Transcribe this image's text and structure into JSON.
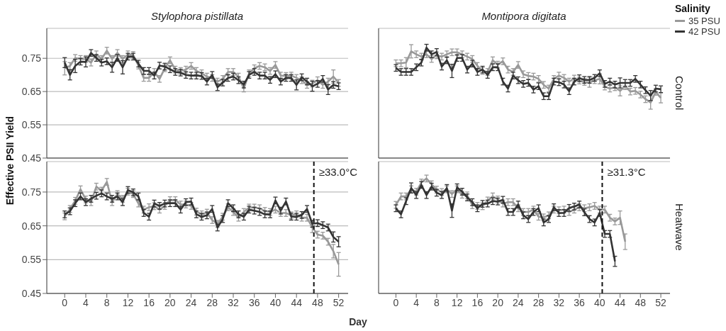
{
  "chart_data": [
    {
      "type": "line",
      "title": "Stylophora pistillata",
      "ylabel": "Effective PSII Yield",
      "tick_labels": "y",
      "grid": "y",
      "x": [
        0,
        1,
        2,
        3,
        4,
        5,
        6,
        7,
        8,
        9,
        10,
        11,
        12,
        13,
        14,
        15,
        16,
        17,
        18,
        19,
        20,
        21,
        22,
        23,
        24,
        25,
        26,
        27,
        28,
        29,
        30,
        31,
        32,
        33,
        34,
        35,
        36,
        37,
        38,
        39,
        40,
        41,
        42,
        43,
        44,
        45,
        46,
        47,
        48,
        49,
        50,
        51,
        52
      ],
      "xlim": [
        -3.4,
        53.8
      ],
      "xticks": [
        0,
        4,
        8,
        12,
        16,
        20,
        24,
        28,
        32,
        36,
        40,
        44,
        48,
        52
      ],
      "ylim": [
        0.45,
        0.84
      ],
      "yticks": [
        0.45,
        0.55,
        0.65,
        0.75
      ],
      "series": [
        {
          "color": "#999999",
          "values": [
            0.72,
            0.727,
            0.751,
            0.748,
            0.748,
            0.737,
            0.762,
            0.748,
            0.773,
            0.748,
            0.766,
            0.748,
            0.762,
            0.76,
            0.728,
            0.691,
            0.691,
            0.709,
            0.688,
            0.72,
            0.744,
            0.716,
            0.712,
            0.716,
            0.727,
            0.712,
            0.705,
            0.695,
            0.691,
            0.68,
            0.688,
            0.709,
            0.709,
            0.695,
            0.659,
            0.705,
            0.72,
            0.727,
            0.723,
            0.712,
            0.73,
            0.698,
            0.697,
            0.698,
            0.691,
            0.684,
            0.67,
            0.674,
            0.684,
            0.67,
            0.68,
            0.695,
            0.676
          ],
          "errors": [
            0.02,
            0.01,
            0.01,
            0.01,
            0.01,
            0.01,
            0.01,
            0.01,
            0.01,
            0.01,
            0.01,
            0.01,
            0.01,
            0.01,
            0.01,
            0.01,
            0.01,
            0.01,
            0.01,
            0.01,
            0.01,
            0.01,
            0.01,
            0.01,
            0.01,
            0.01,
            0.01,
            0.01,
            0.01,
            0.01,
            0.01,
            0.01,
            0.01,
            0.01,
            0.01,
            0.01,
            0.01,
            0.01,
            0.01,
            0.01,
            0.01,
            0.01,
            0.01,
            0.01,
            0.01,
            0.01,
            0.01,
            0.01,
            0.01,
            0.01,
            0.01,
            0.02,
            0.01
          ]
        },
        {
          "color": "#333333",
          "values": [
            0.737,
            0.7,
            0.727,
            0.74,
            0.739,
            0.766,
            0.751,
            0.737,
            0.741,
            0.723,
            0.751,
            0.723,
            0.755,
            0.755,
            0.734,
            0.712,
            0.712,
            0.698,
            0.728,
            0.725,
            0.717,
            0.709,
            0.707,
            0.7,
            0.698,
            0.698,
            0.697,
            0.68,
            0.7,
            0.663,
            0.677,
            0.691,
            0.695,
            0.684,
            0.671,
            0.7,
            0.709,
            0.698,
            0.698,
            0.685,
            0.702,
            0.68,
            0.691,
            0.691,
            0.67,
            0.693,
            0.68,
            0.666,
            0.673,
            0.688,
            0.656,
            0.67,
            0.666
          ],
          "errors": [
            0.015,
            0.015,
            0.02,
            0.01,
            0.015,
            0.01,
            0.01,
            0.01,
            0.01,
            0.015,
            0.01,
            0.02,
            0.01,
            0.01,
            0.01,
            0.01,
            0.01,
            0.01,
            0.01,
            0.01,
            0.01,
            0.01,
            0.01,
            0.01,
            0.01,
            0.01,
            0.01,
            0.01,
            0.01,
            0.01,
            0.01,
            0.01,
            0.01,
            0.01,
            0.01,
            0.01,
            0.01,
            0.01,
            0.01,
            0.01,
            0.01,
            0.01,
            0.01,
            0.01,
            0.015,
            0.01,
            0.01,
            0.015,
            0.01,
            0.01,
            0.015,
            0.01,
            0.01
          ]
        }
      ]
    },
    {
      "type": "line",
      "title": "Montipora digitata",
      "annotations": [
        "Control"
      ],
      "tick_labels": false,
      "grid": "y",
      "legend": "top right",
      "legend_title": "Salinity",
      "x": [
        0,
        1,
        2,
        3,
        4,
        5,
        6,
        7,
        8,
        9,
        10,
        11,
        12,
        13,
        14,
        15,
        16,
        17,
        18,
        19,
        20,
        21,
        22,
        23,
        24,
        25,
        26,
        27,
        28,
        29,
        30,
        31,
        32,
        33,
        34,
        35,
        36,
        37,
        38,
        39,
        40,
        41,
        42,
        43,
        44,
        45,
        46,
        47,
        48,
        49,
        50,
        51,
        52
      ],
      "xlim": [
        -3.4,
        53.8
      ],
      "xticks": [
        0,
        4,
        8,
        12,
        16,
        20,
        24,
        28,
        32,
        36,
        40,
        44,
        48,
        52
      ],
      "ylim": [
        0.45,
        0.84
      ],
      "yticks": [
        0.45,
        0.55,
        0.65,
        0.75
      ],
      "series": [
        {
          "name": "35 PSU",
          "color": "#999999",
          "values": [
            0.735,
            0.735,
            0.737,
            0.771,
            0.762,
            0.755,
            0.762,
            0.748,
            0.759,
            0.755,
            0.762,
            0.768,
            0.768,
            0.762,
            0.755,
            0.748,
            0.727,
            0.712,
            0.709,
            0.744,
            0.731,
            0.741,
            0.716,
            0.709,
            0.73,
            0.702,
            0.697,
            0.695,
            0.688,
            0.67,
            0.659,
            0.688,
            0.698,
            0.691,
            0.68,
            0.689,
            0.683,
            0.679,
            0.678,
            0.684,
            0.688,
            0.665,
            0.659,
            0.663,
            0.652,
            0.666,
            0.65,
            0.652,
            0.641,
            0.627,
            0.617,
            0.649,
            0.631
          ],
          "errors": [
            0.01,
            0.01,
            0.015,
            0.02,
            0.01,
            0.01,
            0.01,
            0.01,
            0.01,
            0.01,
            0.01,
            0.01,
            0.01,
            0.01,
            0.01,
            0.01,
            0.01,
            0.01,
            0.01,
            0.01,
            0.01,
            0.01,
            0.01,
            0.01,
            0.01,
            0.01,
            0.01,
            0.01,
            0.01,
            0.01,
            0.01,
            0.01,
            0.01,
            0.01,
            0.01,
            0.01,
            0.01,
            0.01,
            0.015,
            0.01,
            0.015,
            0.01,
            0.01,
            0.01,
            0.015,
            0.01,
            0.01,
            0.01,
            0.01,
            0.01,
            0.02,
            0.01,
            0.015
          ]
        },
        {
          "name": "42 PSU",
          "color": "#333333",
          "values": [
            0.721,
            0.709,
            0.709,
            0.709,
            0.723,
            0.737,
            0.782,
            0.762,
            0.769,
            0.725,
            0.744,
            0.712,
            0.751,
            0.751,
            0.716,
            0.734,
            0.709,
            0.716,
            0.7,
            0.723,
            0.723,
            0.68,
            0.659,
            0.698,
            0.684,
            0.673,
            0.676,
            0.656,
            0.666,
            0.636,
            0.636,
            0.68,
            0.678,
            0.671,
            0.651,
            0.68,
            0.69,
            0.685,
            0.685,
            0.691,
            0.705,
            0.673,
            0.68,
            0.671,
            0.676,
            0.676,
            0.676,
            0.688,
            0.671,
            0.654,
            0.638,
            0.659,
            0.657
          ],
          "errors": [
            0.01,
            0.01,
            0.01,
            0.01,
            0.01,
            0.01,
            0.01,
            0.01,
            0.01,
            0.01,
            0.01,
            0.02,
            0.01,
            0.01,
            0.01,
            0.01,
            0.01,
            0.01,
            0.01,
            0.01,
            0.01,
            0.01,
            0.01,
            0.01,
            0.01,
            0.01,
            0.01,
            0.01,
            0.01,
            0.01,
            0.01,
            0.01,
            0.01,
            0.01,
            0.01,
            0.01,
            0.01,
            0.01,
            0.01,
            0.01,
            0.01,
            0.01,
            0.01,
            0.01,
            0.015,
            0.01,
            0.01,
            0.01,
            0.01,
            0.01,
            0.015,
            0.01,
            0.01
          ]
        }
      ]
    },
    {
      "type": "line",
      "xlabel": "Day",
      "grid": "y",
      "ref_lines": [
        {
          "axis": "x",
          "value": 47.3,
          "label": "≥33.0°C",
          "line_style": "dashed"
        }
      ],
      "x": [
        0,
        1,
        2,
        3,
        4,
        5,
        6,
        7,
        8,
        9,
        10,
        11,
        12,
        13,
        14,
        15,
        16,
        17,
        18,
        19,
        20,
        21,
        22,
        23,
        24,
        25,
        26,
        27,
        28,
        29,
        30,
        31,
        32,
        33,
        34,
        35,
        36,
        37,
        38,
        39,
        40,
        41,
        42,
        43,
        44,
        45,
        46,
        47,
        48,
        49,
        50,
        51,
        52
      ],
      "xlim": [
        -3.4,
        53.8
      ],
      "xticks": [
        0,
        4,
        8,
        12,
        16,
        20,
        24,
        28,
        32,
        36,
        40,
        44,
        48,
        52
      ],
      "ylim": [
        0.45,
        0.84
      ],
      "yticks": [
        0.45,
        0.55,
        0.65,
        0.75
      ],
      "series": [
        {
          "color": "#999999",
          "values": [
            0.678,
            0.7,
            0.724,
            0.758,
            0.728,
            0.72,
            0.766,
            0.754,
            0.78,
            0.72,
            0.744,
            0.73,
            0.751,
            0.744,
            0.716,
            0.698,
            0.705,
            0.708,
            0.698,
            0.709,
            0.726,
            0.726,
            0.713,
            0.713,
            0.709,
            0.692,
            0.684,
            0.689,
            0.667,
            0.656,
            0.677,
            0.705,
            0.691,
            0.674,
            0.691,
            0.704,
            0.704,
            0.702,
            0.694,
            0.691,
            0.698,
            0.688,
            0.688,
            0.681,
            0.684,
            0.674,
            0.674,
            0.645,
            0.624,
            0.621,
            0.603,
            0.575,
            0.536
          ],
          "errors": [
            0.01,
            0.01,
            0.01,
            0.01,
            0.01,
            0.01,
            0.01,
            0.01,
            0.01,
            0.01,
            0.01,
            0.01,
            0.01,
            0.01,
            0.01,
            0.01,
            0.01,
            0.01,
            0.01,
            0.01,
            0.01,
            0.01,
            0.01,
            0.01,
            0.01,
            0.01,
            0.01,
            0.01,
            0.01,
            0.01,
            0.01,
            0.01,
            0.01,
            0.01,
            0.01,
            0.01,
            0.01,
            0.01,
            0.01,
            0.01,
            0.01,
            0.01,
            0.01,
            0.01,
            0.01,
            0.01,
            0.01,
            0.015,
            0.01,
            0.01,
            0.01,
            0.02,
            0.035
          ]
        },
        {
          "color": "#333333",
          "values": [
            0.684,
            0.693,
            0.717,
            0.737,
            0.72,
            0.73,
            0.739,
            0.746,
            0.737,
            0.73,
            0.737,
            0.72,
            0.756,
            0.749,
            0.737,
            0.688,
            0.677,
            0.716,
            0.709,
            0.716,
            0.717,
            0.717,
            0.698,
            0.72,
            0.722,
            0.684,
            0.677,
            0.681,
            0.7,
            0.645,
            0.67,
            0.717,
            0.702,
            0.684,
            0.677,
            0.698,
            0.695,
            0.691,
            0.684,
            0.684,
            0.725,
            0.695,
            0.722,
            0.677,
            0.677,
            0.682,
            0.7,
            0.656,
            0.658,
            0.652,
            0.645,
            0.617,
            0.603
          ],
          "errors": [
            0.01,
            0.01,
            0.01,
            0.01,
            0.01,
            0.01,
            0.01,
            0.01,
            0.01,
            0.01,
            0.01,
            0.01,
            0.01,
            0.01,
            0.01,
            0.01,
            0.01,
            0.01,
            0.01,
            0.01,
            0.01,
            0.01,
            0.01,
            0.01,
            0.01,
            0.01,
            0.01,
            0.01,
            0.01,
            0.01,
            0.01,
            0.01,
            0.01,
            0.01,
            0.01,
            0.01,
            0.01,
            0.01,
            0.01,
            0.01,
            0.01,
            0.01,
            0.01,
            0.01,
            0.01,
            0.01,
            0.01,
            0.01,
            0.01,
            0.01,
            0.01,
            0.015,
            0.015
          ]
        }
      ]
    },
    {
      "type": "line",
      "annotations": [
        "Heatwave"
      ],
      "tick_labels": "x",
      "grid": "y",
      "ref_lines": [
        {
          "axis": "x",
          "value": 40.5,
          "label": "≥31.3°C",
          "line_style": "dashed"
        }
      ],
      "x": [
        0,
        1,
        2,
        3,
        4,
        5,
        6,
        7,
        8,
        9,
        10,
        11,
        12,
        13,
        14,
        15,
        16,
        17,
        18,
        19,
        20,
        21,
        22,
        23,
        24,
        25,
        26,
        27,
        28,
        29,
        30,
        31,
        32,
        33,
        34,
        35,
        36,
        37,
        38,
        39,
        40,
        41,
        42,
        43,
        44,
        45
      ],
      "xlim": [
        -3.4,
        53.8
      ],
      "xticks": [
        0,
        4,
        8,
        12,
        16,
        20,
        24,
        28,
        32,
        36,
        40,
        44,
        48,
        52
      ],
      "ylim": [
        0.45,
        0.84
      ],
      "yticks": [
        0.45,
        0.55,
        0.65,
        0.75
      ],
      "series": [
        {
          "color": "#999999",
          "values": [
            0.712,
            0.737,
            0.737,
            0.758,
            0.751,
            0.778,
            0.79,
            0.773,
            0.757,
            0.75,
            0.758,
            0.744,
            0.758,
            0.742,
            0.74,
            0.711,
            0.709,
            0.708,
            0.725,
            0.737,
            0.728,
            0.716,
            0.72,
            0.72,
            0.702,
            0.691,
            0.691,
            0.698,
            0.677,
            0.675,
            0.681,
            0.698,
            0.696,
            0.698,
            0.691,
            0.698,
            0.705,
            0.702,
            0.705,
            0.709,
            0.698,
            0.698,
            0.674,
            0.663,
            0.674,
            0.603
          ],
          "errors": [
            0.01,
            0.01,
            0.01,
            0.01,
            0.01,
            0.01,
            0.01,
            0.01,
            0.01,
            0.01,
            0.01,
            0.01,
            0.01,
            0.01,
            0.01,
            0.01,
            0.01,
            0.01,
            0.01,
            0.01,
            0.01,
            0.01,
            0.01,
            0.01,
            0.01,
            0.01,
            0.01,
            0.01,
            0.01,
            0.01,
            0.01,
            0.01,
            0.01,
            0.01,
            0.01,
            0.01,
            0.01,
            0.01,
            0.01,
            0.01,
            0.01,
            0.01,
            0.01,
            0.01,
            0.02,
            0.023
          ]
        },
        {
          "color": "#333333",
          "values": [
            0.702,
            0.684,
            0.723,
            0.762,
            0.741,
            0.771,
            0.741,
            0.766,
            0.748,
            0.741,
            0.762,
            0.695,
            0.764,
            0.751,
            0.734,
            0.72,
            0.702,
            0.715,
            0.716,
            0.723,
            0.722,
            0.727,
            0.691,
            0.691,
            0.713,
            0.681,
            0.67,
            0.691,
            0.702,
            0.66,
            0.67,
            0.705,
            0.688,
            0.688,
            0.703,
            0.707,
            0.713,
            0.69,
            0.67,
            0.66,
            0.688,
            0.626,
            0.626,
            0.545,
            null,
            null
          ],
          "errors": [
            0.01,
            0.01,
            0.01,
            0.015,
            0.01,
            0.01,
            0.01,
            0.01,
            0.01,
            0.01,
            0.01,
            0.02,
            0.01,
            0.01,
            0.01,
            0.01,
            0.01,
            0.01,
            0.01,
            0.01,
            0.01,
            0.01,
            0.01,
            0.01,
            0.01,
            0.01,
            0.01,
            0.01,
            0.01,
            0.01,
            0.01,
            0.01,
            0.01,
            0.01,
            0.01,
            0.01,
            0.01,
            0.01,
            0.01,
            0.01,
            0.01,
            0.01,
            0.01,
            0.015,
            null,
            null
          ]
        }
      ]
    }
  ]
}
